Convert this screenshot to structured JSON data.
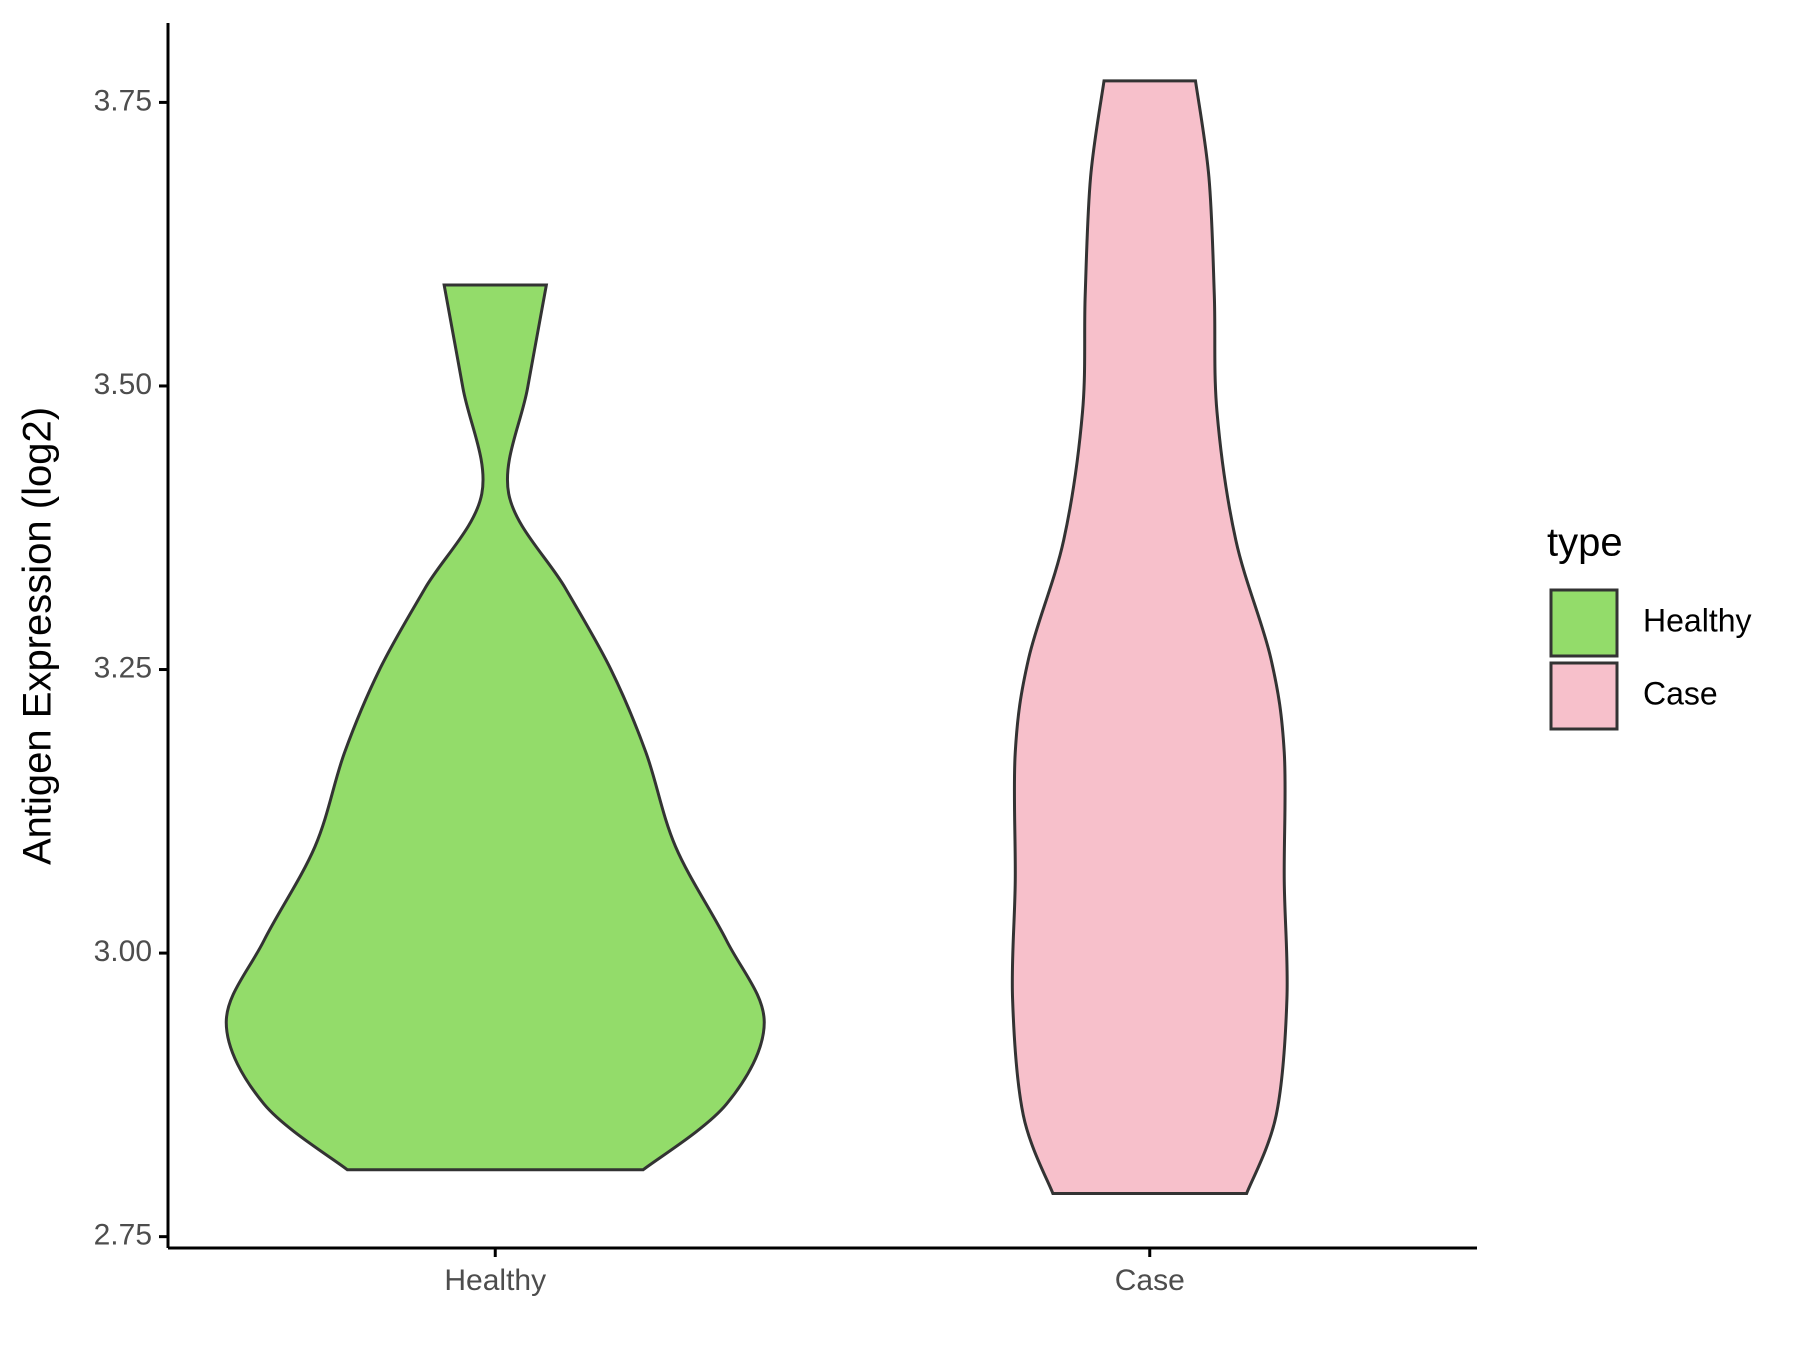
{
  "chart_data": {
    "type": "violin",
    "y_label": "Antigen Expression (log2)",
    "categories": [
      "Healthy",
      "Case"
    ],
    "series": [
      {
        "name": "Healthy",
        "color": "#93dc6a",
        "y": [
          2.809,
          2.867,
          2.939,
          3.011,
          3.094,
          3.177,
          3.25,
          3.322,
          3.405,
          3.498,
          3.589
        ],
        "density": [
          0.55,
          0.86,
          1.0,
          0.86,
          0.67,
          0.56,
          0.43,
          0.26,
          0.05,
          0.12,
          0.19
        ]
      },
      {
        "name": "Case",
        "color": "#f7c0cb",
        "y": [
          2.788,
          2.857,
          2.96,
          3.064,
          3.177,
          3.26,
          3.364,
          3.477,
          3.58,
          3.684,
          3.769
        ],
        "density": [
          0.36,
          0.47,
          0.51,
          0.5,
          0.5,
          0.45,
          0.32,
          0.25,
          0.24,
          0.22,
          0.17
        ]
      }
    ],
    "ylim": [
      2.74,
      3.82
    ],
    "yticks": [
      {
        "value": 2.75,
        "label": "2.75"
      },
      {
        "value": 3,
        "label": "3.00"
      },
      {
        "value": 3.25,
        "label": "3.25"
      },
      {
        "value": 3.5,
        "label": "3.50"
      },
      {
        "value": 3.75,
        "label": "3.75"
      }
    ],
    "legend_title": "type",
    "legend_position": "right"
  }
}
